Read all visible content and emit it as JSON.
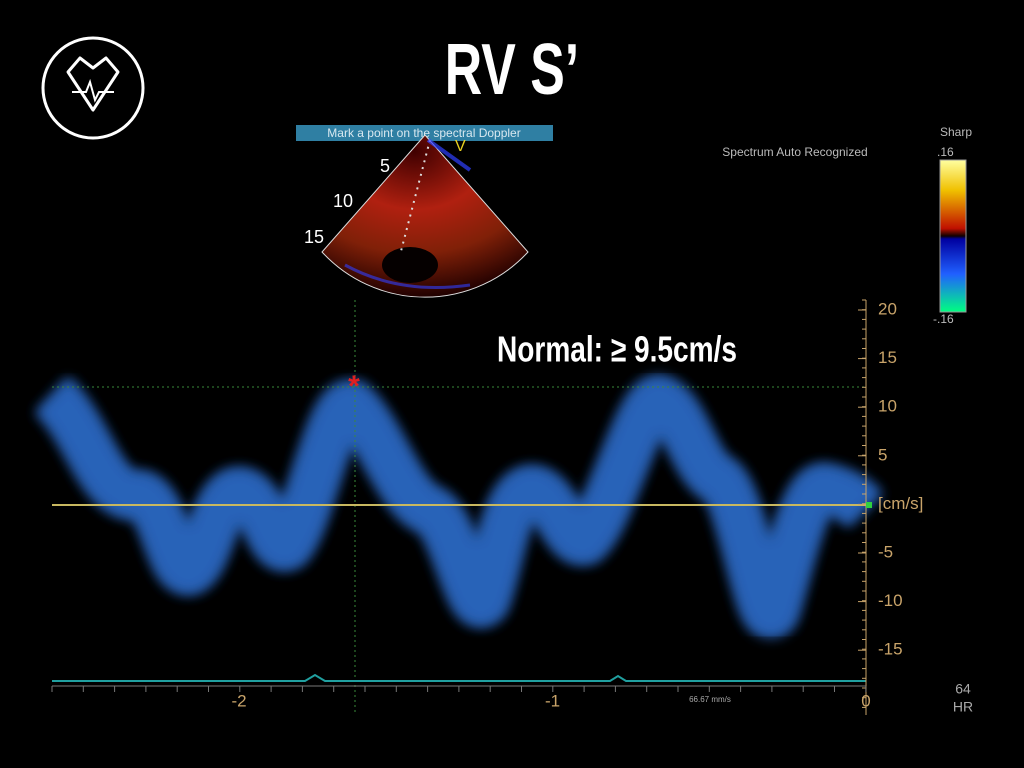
{
  "title": "RV S’",
  "annotation": "Normal: ≥ 9.5cm/s",
  "prompt": "Mark a point on the spectral Doppler",
  "status": "Spectrum Auto Recognized",
  "color_scale": {
    "label": "Sharp",
    "max": ".16",
    "min": "-.16"
  },
  "sector": {
    "depth_labels": [
      "5",
      "10",
      "15"
    ],
    "marker": "V"
  },
  "velocity_axis": {
    "labels": [
      "20",
      "15",
      "10",
      "5",
      "[cm/s]",
      "-5",
      "-10",
      "-15"
    ]
  },
  "time_axis": {
    "labels": [
      "-2",
      "-1",
      "0"
    ],
    "sweep": "66.67 mm/s"
  },
  "heart_rate": {
    "value": "64",
    "unit": "HR"
  }
}
